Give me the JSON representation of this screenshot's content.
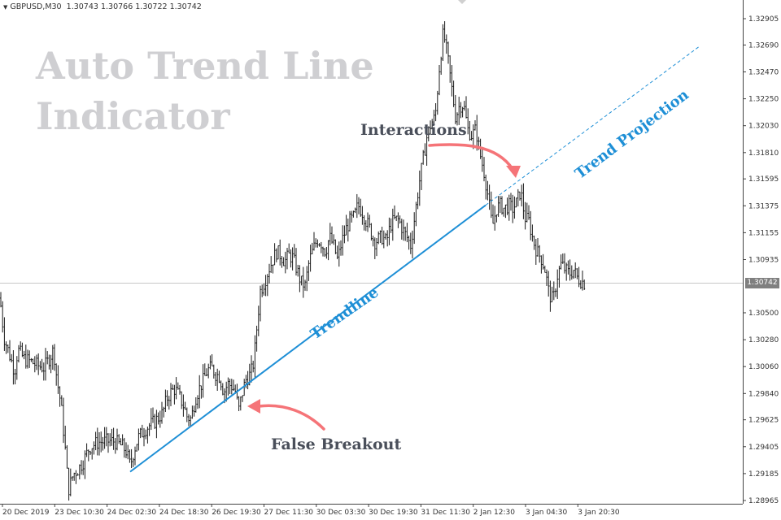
{
  "window": {
    "symbol": "GBPUSD,M30",
    "ohlc": "1.30743 1.30766 1.30722 1.30742",
    "dropdown_icon": "triangle-down-icon"
  },
  "overlay": {
    "title_line1": "Auto Trend Line",
    "title_line2": "Indicator",
    "interactions": "Interactions",
    "trend_projection": "Trend Projection",
    "trendline": "Trendline",
    "false_breakout": "False Breakout"
  },
  "colors": {
    "candles": "#1a1a1a",
    "trendline": "#1e8fd6",
    "arrows": "#f57478",
    "axis_text": "#333333",
    "price_tag": "#7f7f7f"
  },
  "price_axis": {
    "labels": [
      "1.32905",
      "1.32690",
      "1.32470",
      "1.32250",
      "1.32030",
      "1.31810",
      "1.31595",
      "1.31375",
      "1.31155",
      "1.30935",
      "1.30500",
      "1.30280",
      "1.30060",
      "1.29840",
      "1.29625",
      "1.29405",
      "1.29185",
      "1.28965"
    ],
    "current_price": "1.30742"
  },
  "time_axis": {
    "labels": [
      "20 Dec 2019",
      "23 Dec 10:30",
      "24 Dec 02:30",
      "24 Dec 18:30",
      "26 Dec 19:30",
      "27 Dec 11:30",
      "30 Dec 03:30",
      "30 Dec 19:30",
      "31 Dec 11:30",
      "2 Jan 12:30",
      "3 Jan 04:30",
      "3 Jan 20:30"
    ]
  },
  "chart_data": {
    "type": "bar",
    "symbol": "GBPUSD",
    "timeframe": "M30",
    "ylim": [
      1.2885,
      1.3301
    ],
    "current_price": 1.30742,
    "x_tick_labels": [
      "20 Dec 2019",
      "23 Dec 10:30",
      "24 Dec 02:30",
      "24 Dec 18:30",
      "26 Dec 19:30",
      "27 Dec 11:30",
      "30 Dec 03:30",
      "30 Dec 19:30",
      "31 Dec 11:30",
      "2 Jan 12:30",
      "3 Jan 04:30",
      "3 Jan 20:30"
    ],
    "y_tick_labels": [
      "1.32905",
      "1.32690",
      "1.32470",
      "1.32250",
      "1.32030",
      "1.31810",
      "1.31595",
      "1.31375",
      "1.31155",
      "1.30935",
      "1.30500",
      "1.30280",
      "1.30060",
      "1.29840",
      "1.29625",
      "1.29405",
      "1.29185",
      "1.28965"
    ],
    "price_path": [
      [
        0,
        1.3062
      ],
      [
        5,
        1.303
      ],
      [
        12,
        1.3015
      ],
      [
        18,
        1.3002
      ],
      [
        22,
        1.302
      ],
      [
        30,
        1.3012
      ],
      [
        38,
        1.301
      ],
      [
        46,
        1.3007
      ],
      [
        54,
        1.3005
      ],
      [
        60,
        1.3012
      ],
      [
        66,
        1.302
      ],
      [
        70,
        1.2995
      ],
      [
        75,
        1.2975
      ],
      [
        80,
        1.294
      ],
      [
        84,
        1.2905
      ],
      [
        90,
        1.2918
      ],
      [
        96,
        1.2922
      ],
      [
        102,
        1.2928
      ],
      [
        110,
        1.294
      ],
      [
        120,
        1.2944
      ],
      [
        130,
        1.2945
      ],
      [
        140,
        1.2945
      ],
      [
        150,
        1.2941
      ],
      [
        155,
        1.2937
      ],
      [
        160,
        1.2925
      ],
      [
        165,
        1.2938
      ],
      [
        170,
        1.2948
      ],
      [
        180,
        1.2956
      ],
      [
        190,
        1.2961
      ],
      [
        200,
        1.2968
      ],
      [
        205,
        1.298
      ],
      [
        210,
        1.2985
      ],
      [
        215,
        1.2988
      ],
      [
        220,
        1.2982
      ],
      [
        225,
        1.2975
      ],
      [
        230,
        1.2965
      ],
      [
        235,
        1.2963
      ],
      [
        240,
        1.298
      ],
      [
        245,
        1.2988
      ],
      [
        250,
        1.2995
      ],
      [
        255,
        1.3003
      ],
      [
        260,
        1.3005
      ],
      [
        265,
        1.3
      ],
      [
        270,
        1.2998
      ],
      [
        275,
        1.2985
      ],
      [
        280,
        1.2992
      ],
      [
        285,
        1.299
      ],
      [
        290,
        1.2985
      ],
      [
        293,
        1.2969
      ],
      [
        298,
        1.2985
      ],
      [
        302,
        1.2995
      ],
      [
        308,
        1.3
      ],
      [
        312,
        1.301
      ],
      [
        316,
        1.304
      ],
      [
        320,
        1.3068
      ],
      [
        325,
        1.3075
      ],
      [
        330,
        1.3085
      ],
      [
        335,
        1.3093
      ],
      [
        340,
        1.31
      ],
      [
        345,
        1.3097
      ],
      [
        350,
        1.3092
      ],
      [
        355,
        1.3097
      ],
      [
        360,
        1.3095
      ],
      [
        365,
        1.3085
      ],
      [
        370,
        1.3075
      ],
      [
        375,
        1.3072
      ],
      [
        380,
        1.3092
      ],
      [
        385,
        1.3102
      ],
      [
        390,
        1.311
      ],
      [
        395,
        1.3107
      ],
      [
        400,
        1.31
      ],
      [
        405,
        1.3112
      ],
      [
        410,
        1.3105
      ],
      [
        415,
        1.3093
      ],
      [
        420,
        1.3108
      ],
      [
        425,
        1.3118
      ],
      [
        430,
        1.3125
      ],
      [
        435,
        1.3128
      ],
      [
        440,
        1.3138
      ],
      [
        445,
        1.3133
      ],
      [
        450,
        1.3125
      ],
      [
        455,
        1.3118
      ],
      [
        460,
        1.3108
      ],
      [
        465,
        1.311
      ],
      [
        470,
        1.3112
      ],
      [
        475,
        1.3108
      ],
      [
        480,
        1.3122
      ],
      [
        485,
        1.3126
      ],
      [
        490,
        1.3126
      ],
      [
        495,
        1.3118
      ],
      [
        500,
        1.3112
      ],
      [
        505,
        1.3105
      ],
      [
        510,
        1.313
      ],
      [
        515,
        1.3155
      ],
      [
        520,
        1.3175
      ],
      [
        525,
        1.3195
      ],
      [
        530,
        1.3205
      ],
      [
        535,
        1.321
      ],
      [
        540,
        1.325
      ],
      [
        545,
        1.328
      ],
      [
        550,
        1.326
      ],
      [
        555,
        1.3235
      ],
      [
        560,
        1.321
      ],
      [
        565,
        1.322
      ],
      [
        570,
        1.322
      ],
      [
        575,
        1.32
      ],
      [
        580,
        1.3195
      ],
      [
        585,
        1.32
      ],
      [
        590,
        1.318
      ],
      [
        595,
        1.3165
      ],
      [
        600,
        1.3145
      ],
      [
        605,
        1.312
      ],
      [
        610,
        1.3135
      ],
      [
        615,
        1.3138
      ],
      [
        620,
        1.3135
      ],
      [
        625,
        1.3138
      ],
      [
        630,
        1.3135
      ],
      [
        635,
        1.314
      ],
      [
        640,
        1.315
      ],
      [
        645,
        1.3128
      ],
      [
        650,
        1.3125
      ],
      [
        655,
        1.311
      ],
      [
        660,
        1.31
      ],
      [
        665,
        1.3095
      ],
      [
        670,
        1.3085
      ],
      [
        675,
        1.3065
      ],
      [
        680,
        1.306
      ],
      [
        685,
        1.308
      ],
      [
        690,
        1.309
      ],
      [
        695,
        1.3085
      ],
      [
        700,
        1.3082
      ],
      [
        705,
        1.3085
      ],
      [
        710,
        1.3078
      ],
      [
        715,
        1.3076
      ],
      [
        719,
        1.3074
      ]
    ],
    "trendline": {
      "start": {
        "x_index": 160,
        "price": 1.292
      },
      "end": {
        "x_index": 597,
        "price": 1.3138
      }
    },
    "trend_projection": {
      "start": {
        "x_index": 597,
        "price": 1.3138
      },
      "end": {
        "x_index": 860,
        "price": 1.3268
      }
    },
    "annotations": [
      "Trendline",
      "Trend Projection",
      "Interactions",
      "False Breakout"
    ]
  }
}
